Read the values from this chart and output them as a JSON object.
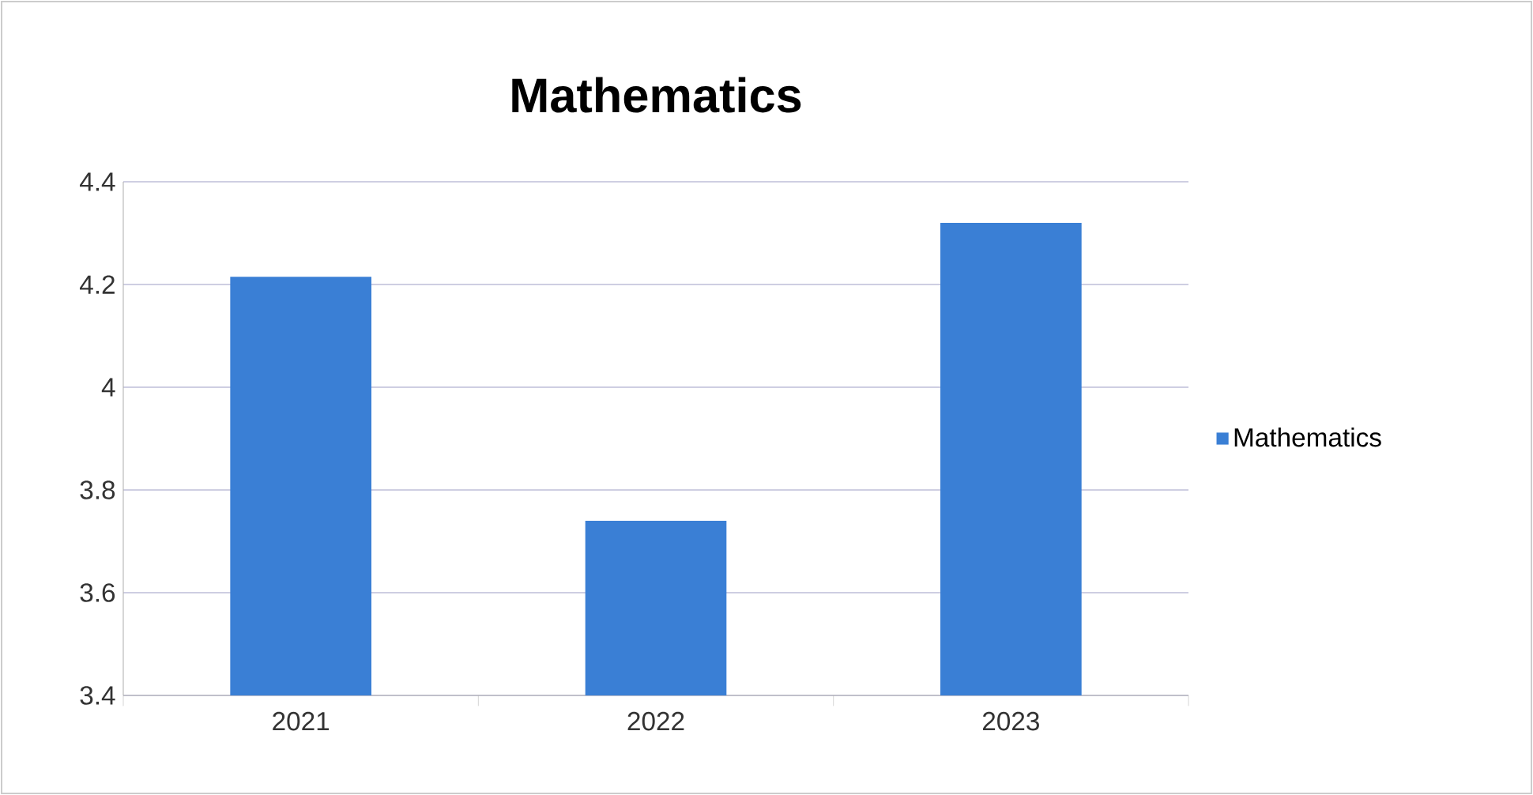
{
  "chart_data": {
    "type": "bar",
    "title": "Mathematics",
    "categories": [
      "2021",
      "2022",
      "2023"
    ],
    "series": [
      {
        "name": "Mathematics",
        "color": "#3a7fd5",
        "values": [
          4.215,
          3.74,
          4.32
        ]
      }
    ],
    "ylim": [
      3.4,
      4.4
    ],
    "yticks": [
      {
        "value": 3.4,
        "label": "3.4"
      },
      {
        "value": 3.6,
        "label": "3.6"
      },
      {
        "value": 3.8,
        "label": "3.8"
      },
      {
        "value": 4.0,
        "label": "4"
      },
      {
        "value": 4.2,
        "label": "4.2"
      },
      {
        "value": 4.4,
        "label": "4.4"
      }
    ],
    "grid": "y",
    "legend": "right"
  }
}
